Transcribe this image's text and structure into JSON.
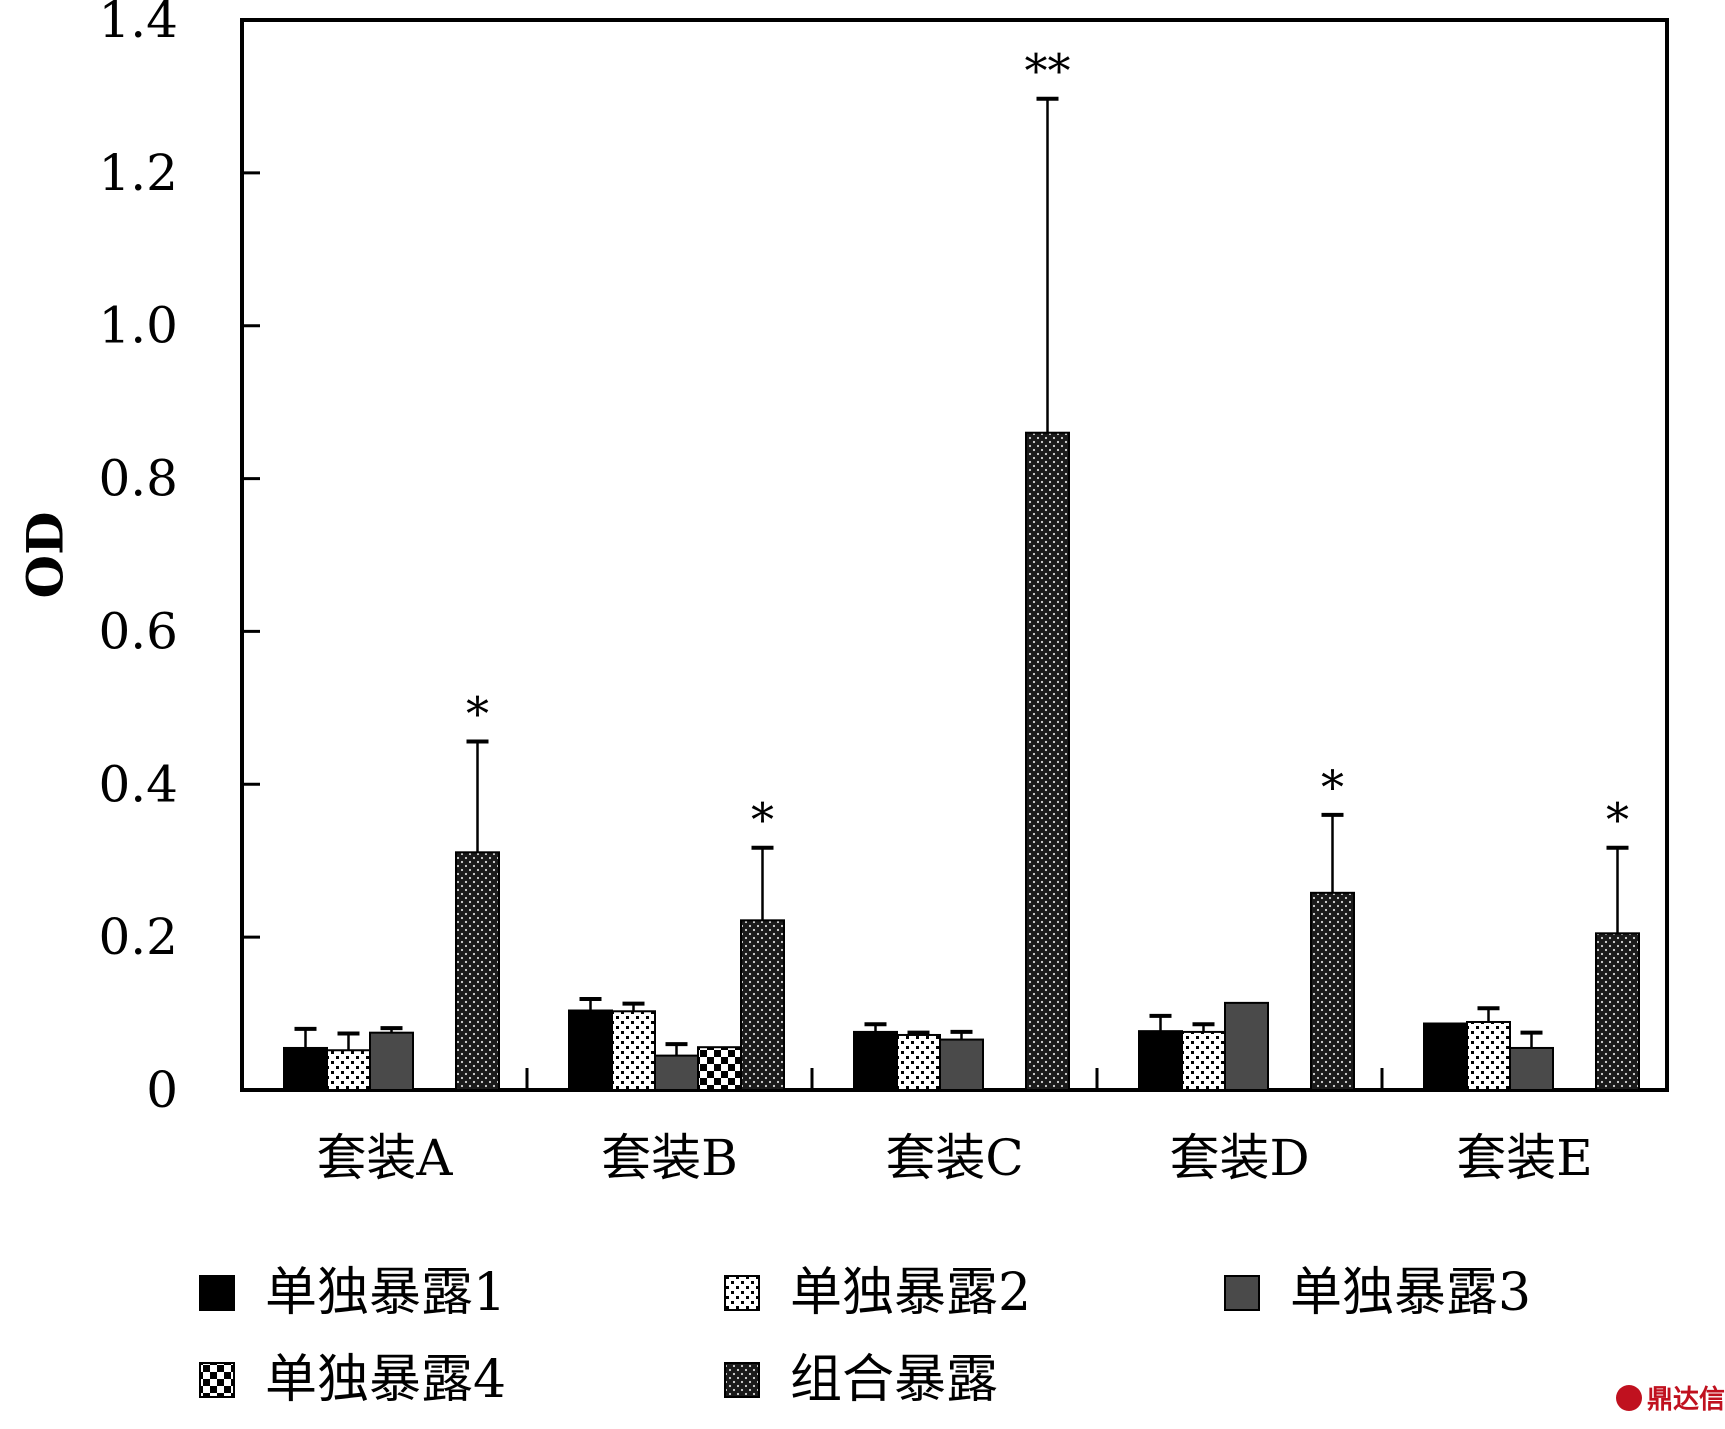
{
  "chart_data": {
    "type": "bar",
    "ylabel": "OD",
    "xlabel": "",
    "ylim": [
      0,
      1.4
    ],
    "yticks": [
      0,
      0.2,
      0.4,
      0.6,
      0.8,
      1.0,
      1.2,
      1.4
    ],
    "ytick_labels": [
      "0",
      "0.2",
      "0.4",
      "0.6",
      "0.8",
      "1.0",
      "1.2",
      "1.4"
    ],
    "categories": [
      "套装A",
      "套装B",
      "套装C",
      "套装D",
      "套装E"
    ],
    "series": [
      {
        "name": "单独暴露1",
        "values": [
          0.055,
          0.104,
          0.076,
          0.077,
          0.087
        ],
        "errors": [
          0.025,
          0.015,
          0.01,
          0.02,
          0.0
        ],
        "pattern": "solid-black"
      },
      {
        "name": "单独暴露2",
        "values": [
          0.052,
          0.103,
          0.072,
          0.076,
          0.089
        ],
        "errors": [
          0.022,
          0.01,
          0.003,
          0.01,
          0.018
        ],
        "pattern": "dots-white"
      },
      {
        "name": "单独暴露3",
        "values": [
          0.075,
          0.045,
          0.066,
          0.114,
          0.055
        ],
        "errors": [
          0.006,
          0.015,
          0.01,
          0.0,
          0.02
        ],
        "pattern": "solid-gray"
      },
      {
        "name": "单独暴露4",
        "values": [
          null,
          0.056,
          null,
          null,
          null
        ],
        "errors": [
          null,
          0.0,
          null,
          null,
          null
        ],
        "pattern": "checker"
      },
      {
        "name": "组合暴露",
        "values": [
          0.311,
          0.222,
          0.86,
          0.258,
          0.205
        ],
        "errors": [
          0.145,
          0.095,
          0.437,
          0.102,
          0.112
        ],
        "pattern": "dense-dots"
      }
    ],
    "annotations": [
      {
        "category": "套装A",
        "series": "组合暴露",
        "text": "*"
      },
      {
        "category": "套装B",
        "series": "组合暴露",
        "text": "*"
      },
      {
        "category": "套装C",
        "series": "组合暴露",
        "text": "**"
      },
      {
        "category": "套装D",
        "series": "组合暴露",
        "text": "*"
      },
      {
        "category": "套装E",
        "series": "组合暴露",
        "text": "*"
      }
    ],
    "legend_position": "bottom",
    "grid": false
  },
  "watermark": {
    "text": "鼎达信",
    "color": "#c0111f"
  }
}
